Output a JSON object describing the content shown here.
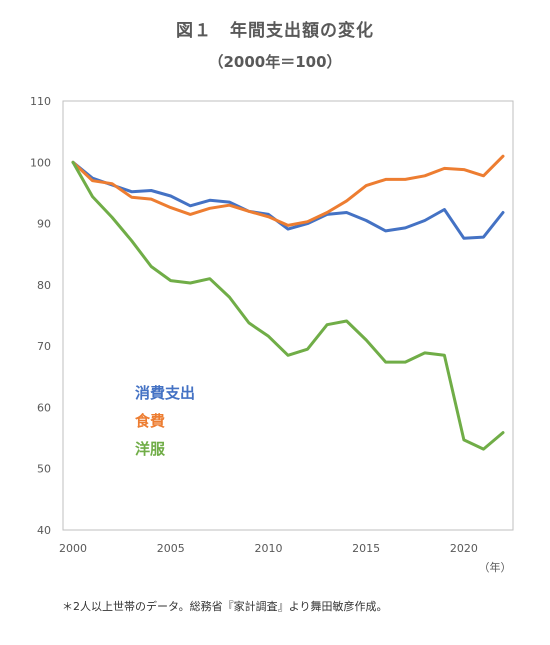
{
  "chart_data": {
    "type": "line",
    "title": "図１　年間支出額の変化",
    "subtitle": "（2000年＝100）",
    "xlabel": "（年）",
    "ylabel": "",
    "x": [
      2000,
      2001,
      2002,
      2003,
      2004,
      2005,
      2006,
      2007,
      2008,
      2009,
      2010,
      2011,
      2012,
      2013,
      2014,
      2015,
      2016,
      2017,
      2018,
      2019,
      2020,
      2021,
      2022
    ],
    "xticks": [
      "2000",
      "2005",
      "2010",
      "2015",
      "2020"
    ],
    "yticks": [
      "40",
      "50",
      "60",
      "70",
      "80",
      "90",
      "100",
      "110"
    ],
    "xlim": [
      2000,
      2022
    ],
    "ylim": [
      40,
      110
    ],
    "grid": false,
    "legend_position": "inline-left",
    "series": [
      {
        "name": "消費支出",
        "color": "#4472C4",
        "values": [
          100,
          97.4,
          96.3,
          95.2,
          95.4,
          94.5,
          92.9,
          93.8,
          93.5,
          92.0,
          91.5,
          89.1,
          90.0,
          91.5,
          91.8,
          90.5,
          88.8,
          89.3,
          90.5,
          92.3,
          87.6,
          87.8,
          91.8
        ]
      },
      {
        "name": "食費",
        "color": "#ED7D31",
        "values": [
          100,
          97.0,
          96.5,
          94.3,
          94.0,
          92.6,
          91.5,
          92.5,
          93.0,
          92.0,
          91.1,
          89.7,
          90.3,
          91.8,
          93.7,
          96.2,
          97.2,
          97.2,
          97.8,
          99.0,
          98.8,
          97.8,
          101.0
        ]
      },
      {
        "name": "洋服",
        "color": "#70AD47",
        "values": [
          100,
          94.4,
          91.0,
          87.2,
          83.0,
          80.7,
          80.3,
          81.0,
          78.0,
          73.8,
          71.6,
          68.5,
          69.5,
          73.5,
          74.1,
          71.0,
          67.4,
          67.4,
          68.9,
          68.5,
          54.7,
          53.2,
          55.9
        ]
      }
    ]
  },
  "footnote": "＊2人以上世帯のデータ。総務省『家計調査』より舞田敏彦作成。"
}
